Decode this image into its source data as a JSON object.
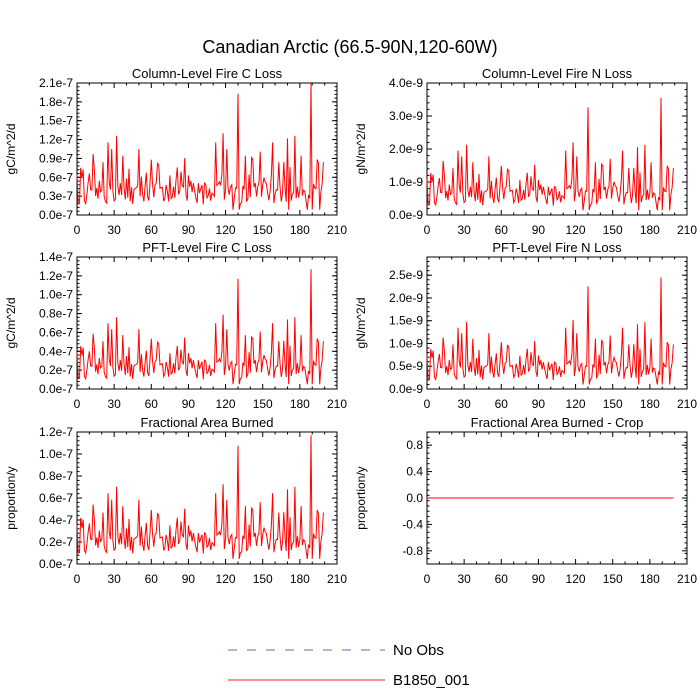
{
  "figure": {
    "title": "Canadian Arctic (66.5-90N,120-60W)"
  },
  "legend": {
    "items": [
      {
        "label": "No Obs",
        "color": "#6a6aaa",
        "dash": "dashed"
      },
      {
        "label": "B1850_001",
        "color": "#e8201a",
        "dash": "solid"
      }
    ]
  },
  "colors": {
    "series": "#ff0000",
    "obs": "#6a6aaa",
    "axis": "#000000"
  },
  "chart_data": [
    {
      "type": "line",
      "title": "Column-Level Fire C Loss",
      "ylabel": "gC/m^2/d",
      "xlim": [
        0,
        210
      ],
      "ylim": [
        0,
        2.1e-07
      ],
      "xticks": [
        0,
        30,
        60,
        90,
        120,
        150,
        180,
        210
      ],
      "xtick_labels": [
        "0",
        "30",
        "60",
        "90",
        "120",
        "150",
        "180",
        "210"
      ],
      "yticks": [
        0,
        3e-08,
        6e-08,
        9e-08,
        1.2e-07,
        1.5e-07,
        1.8e-07,
        2.1e-07
      ],
      "ytick_labels": [
        "0.0e-7",
        "0.3e-7",
        "0.6e-7",
        "0.9e-7",
        "1.2e-7",
        "1.5e-7",
        "1.8e-7",
        "2.1e-7"
      ],
      "series": [
        {
          "name": "B1850_001",
          "peak": 2.1e-07
        }
      ]
    },
    {
      "type": "line",
      "title": "Column-Level Fire N Loss",
      "ylabel": "gN/m^2/d",
      "xlim": [
        0,
        210
      ],
      "ylim": [
        0,
        4e-09
      ],
      "xticks": [
        0,
        30,
        60,
        90,
        120,
        150,
        180,
        210
      ],
      "xtick_labels": [
        "0",
        "30",
        "60",
        "90",
        "120",
        "150",
        "180",
        "210"
      ],
      "yticks": [
        0,
        1e-09,
        2e-09,
        3e-09,
        4e-09
      ],
      "ytick_labels": [
        "0.0e-9",
        "1.0e-9",
        "2.0e-9",
        "3.0e-9",
        "4.0e-9"
      ],
      "series": [
        {
          "name": "B1850_001",
          "peak": 3.55e-09
        }
      ]
    },
    {
      "type": "line",
      "title": "PFT-Level Fire C Loss",
      "ylabel": "gC/m^2/d",
      "xlim": [
        0,
        210
      ],
      "ylim": [
        0,
        1.4e-07
      ],
      "xticks": [
        0,
        30,
        60,
        90,
        120,
        150,
        180,
        210
      ],
      "xtick_labels": [
        "0",
        "30",
        "60",
        "90",
        "120",
        "150",
        "180",
        "210"
      ],
      "yticks": [
        0,
        2e-08,
        4e-08,
        6e-08,
        8e-08,
        1e-07,
        1.2e-07,
        1.4e-07
      ],
      "ytick_labels": [
        "0.0e-7",
        "0.2e-7",
        "0.4e-7",
        "0.6e-7",
        "0.8e-7",
        "1.0e-7",
        "1.2e-7",
        "1.4e-7"
      ],
      "series": [
        {
          "name": "B1850_001",
          "peak": 1.27e-07
        }
      ]
    },
    {
      "type": "line",
      "title": "PFT-Level Fire N Loss",
      "ylabel": "gN/m^2/d",
      "xlim": [
        0,
        210
      ],
      "ylim": [
        0,
        2.9e-09
      ],
      "xticks": [
        0,
        30,
        60,
        90,
        120,
        150,
        180,
        210
      ],
      "xtick_labels": [
        "0",
        "30",
        "60",
        "90",
        "120",
        "150",
        "180",
        "210"
      ],
      "yticks": [
        0,
        5e-10,
        1e-09,
        1.5e-09,
        2e-09,
        2.5e-09
      ],
      "ytick_labels": [
        "0.0e-9",
        "0.5e-9",
        "1.0e-9",
        "1.5e-9",
        "2.0e-9",
        "2.5e-9"
      ],
      "series": [
        {
          "name": "B1850_001",
          "peak": 2.45e-09
        }
      ]
    },
    {
      "type": "line",
      "title": "Fractional Area Burned",
      "ylabel": "proportion/y",
      "xlim": [
        0,
        210
      ],
      "ylim": [
        0,
        1.2e-07
      ],
      "xticks": [
        0,
        30,
        60,
        90,
        120,
        150,
        180,
        210
      ],
      "xtick_labels": [
        "0",
        "30",
        "60",
        "90",
        "120",
        "150",
        "180",
        "210"
      ],
      "yticks": [
        0,
        2e-08,
        4e-08,
        6e-08,
        8e-08,
        1e-07,
        1.2e-07
      ],
      "ytick_labels": [
        "0.0e-7",
        "0.2e-7",
        "0.4e-7",
        "0.6e-7",
        "0.8e-7",
        "1.0e-7",
        "1.2e-7"
      ],
      "series": [
        {
          "name": "B1850_001",
          "peak": 1.17e-07
        }
      ]
    },
    {
      "type": "line",
      "title": "Fractional Area Burned - Crop",
      "ylabel": "proportion/y",
      "xlim": [
        0,
        210
      ],
      "ylim": [
        -1.0,
        1.0
      ],
      "xticks": [
        0,
        30,
        60,
        90,
        120,
        150,
        180,
        210
      ],
      "xtick_labels": [
        "0",
        "30",
        "60",
        "90",
        "120",
        "150",
        "180",
        "210"
      ],
      "yticks": [
        -0.8,
        -0.4,
        0.0,
        0.4,
        0.8
      ],
      "ytick_labels": [
        "-0.8",
        "-0.4",
        "0.0",
        "0.4",
        "0.8"
      ],
      "series": [
        {
          "name": "B1850_001",
          "constant": 0.0
        }
      ]
    }
  ]
}
